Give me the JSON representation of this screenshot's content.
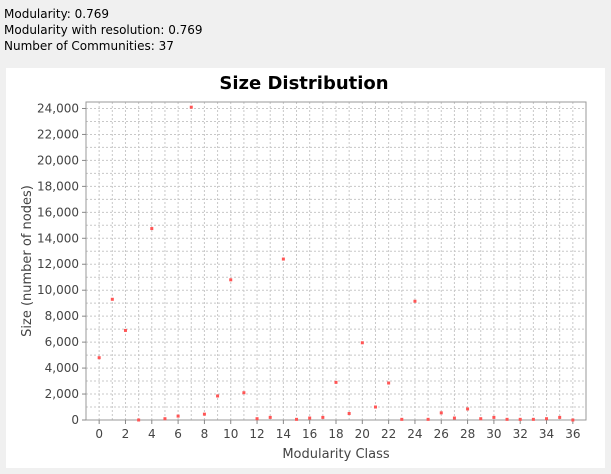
{
  "stats": {
    "modularity": "Modularity: 0.769",
    "modularity_resolution": "Modularity with resolution: 0.769",
    "communities": "Number of Communities: 37"
  },
  "colors": {
    "point": "#ff5555",
    "grid": "#c8c8c8",
    "axis": "#888888",
    "panel_bg": "#ffffff",
    "window_bg": "#f0f0f0"
  },
  "chart_data": {
    "type": "scatter",
    "title": "Size Distribution",
    "xlabel": "Modularity Class",
    "ylabel": "Size (number of nodes)",
    "xlim": [
      -1,
      37
    ],
    "ylim": [
      0,
      24500
    ],
    "x_ticks": [
      0,
      2,
      4,
      6,
      8,
      10,
      12,
      14,
      16,
      18,
      20,
      22,
      24,
      26,
      28,
      30,
      32,
      34,
      36
    ],
    "x_tick_labels": [
      "0",
      "2",
      "4",
      "6",
      "8",
      "10",
      "12",
      "14",
      "16",
      "18",
      "20",
      "22",
      "24",
      "26",
      "28",
      "30",
      "32",
      "34",
      "36"
    ],
    "y_ticks": [
      0,
      2000,
      4000,
      6000,
      8000,
      10000,
      12000,
      14000,
      16000,
      18000,
      20000,
      22000,
      24000
    ],
    "y_tick_labels": [
      "0",
      "2,000",
      "4,000",
      "6,000",
      "8,000",
      "10,000",
      "12,000",
      "14,000",
      "16,000",
      "18,000",
      "20,000",
      "22,000",
      "24,000"
    ],
    "grid": true,
    "x": [
      0,
      1,
      2,
      3,
      4,
      5,
      6,
      7,
      8,
      9,
      10,
      11,
      12,
      13,
      14,
      15,
      16,
      17,
      18,
      19,
      20,
      21,
      22,
      23,
      24,
      25,
      26,
      27,
      28,
      29,
      30,
      31,
      32,
      33,
      34,
      35,
      36
    ],
    "y": [
      4800,
      9300,
      6900,
      0,
      14750,
      100,
      300,
      24100,
      450,
      1850,
      10800,
      2100,
      100,
      200,
      12400,
      50,
      150,
      200,
      2900,
      500,
      5950,
      1000,
      2850,
      50,
      9150,
      50,
      550,
      150,
      850,
      100,
      200,
      50,
      50,
      50,
      100,
      200,
      0
    ]
  }
}
